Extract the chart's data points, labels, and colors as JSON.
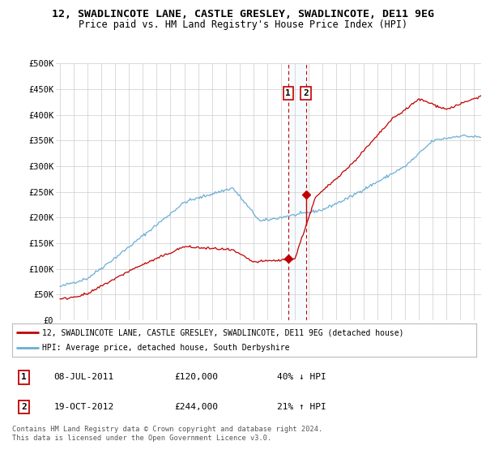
{
  "title": "12, SWADLINCOTE LANE, CASTLE GRESLEY, SWADLINCOTE, DE11 9EG",
  "subtitle": "Price paid vs. HM Land Registry's House Price Index (HPI)",
  "ylim": [
    0,
    500000
  ],
  "yticks": [
    0,
    50000,
    100000,
    150000,
    200000,
    250000,
    300000,
    350000,
    400000,
    450000,
    500000
  ],
  "ytick_labels": [
    "£0",
    "£50K",
    "£100K",
    "£150K",
    "£200K",
    "£250K",
    "£300K",
    "£350K",
    "£400K",
    "£450K",
    "£500K"
  ],
  "hpi_color": "#6aaed6",
  "price_color": "#c00000",
  "marker_color": "#c00000",
  "annotation_box_facecolor": "#dce9f5",
  "annotation_border_color": "#c00000",
  "transaction1_x": 2011.52,
  "transaction1_y": 120000,
  "transaction2_x": 2012.8,
  "transaction2_y": 244000,
  "legend_line1": "12, SWADLINCOTE LANE, CASTLE GRESLEY, SWADLINCOTE, DE11 9EG (detached house)",
  "legend_line2": "HPI: Average price, detached house, South Derbyshire",
  "table_row1": [
    "1",
    "08-JUL-2011",
    "£120,000",
    "40% ↓ HPI"
  ],
  "table_row2": [
    "2",
    "19-OCT-2012",
    "£244,000",
    "21% ↑ HPI"
  ],
  "footnote": "Contains HM Land Registry data © Crown copyright and database right 2024.\nThis data is licensed under the Open Government Licence v3.0.",
  "background_color": "#ffffff",
  "grid_color": "#cccccc",
  "title_fontsize": 9.5,
  "subtitle_fontsize": 8.5,
  "tick_fontsize": 7.5,
  "xmin": 1994.7,
  "xmax": 2025.5,
  "xticks": [
    1995,
    1996,
    1997,
    1998,
    1999,
    2000,
    2001,
    2002,
    2003,
    2004,
    2005,
    2006,
    2007,
    2008,
    2009,
    2010,
    2011,
    2012,
    2013,
    2014,
    2015,
    2016,
    2017,
    2018,
    2019,
    2020,
    2021,
    2022,
    2023,
    2024,
    2025
  ]
}
